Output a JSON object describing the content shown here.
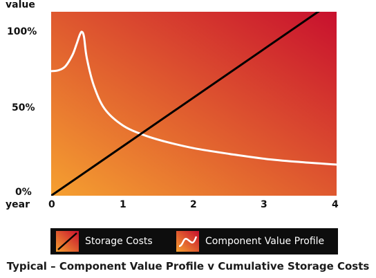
{
  "chart_data": {
    "type": "line",
    "title": "Typical – Component Value Profile v Cumulative Storage Costs",
    "xlabel": "year",
    "ylabel": "value",
    "xlim": [
      0,
      4
    ],
    "ylim": [
      0,
      100
    ],
    "x_ticks": [
      "0",
      "1",
      "2",
      "3",
      "4"
    ],
    "y_ticks": [
      "0%",
      "50%",
      "100%"
    ],
    "grid": false,
    "legend_position": "bottom",
    "background_gradient": [
      "#f5a030",
      "#c8102e"
    ],
    "series": [
      {
        "name": "Storage Costs",
        "color": "#000000",
        "x": [
          0,
          4
        ],
        "y": [
          0,
          120
        ]
      },
      {
        "name": "Component Value Profile",
        "color": "#ffffff",
        "x": [
          0,
          0.1,
          0.2,
          0.3,
          0.36,
          0.4,
          0.43,
          0.46,
          0.5,
          0.6,
          0.75,
          1.0,
          1.3,
          1.6,
          2.0,
          2.5,
          3.0,
          3.5,
          4.0
        ],
        "y": [
          76,
          76.5,
          79,
          86,
          93,
          98,
          100,
          97,
          84,
          67,
          53,
          43,
          37,
          33,
          29,
          25.5,
          22.5,
          20.5,
          19
        ]
      }
    ]
  },
  "legend": {
    "items": [
      {
        "label": "Storage Costs",
        "swatch": "storage-costs-swatch"
      },
      {
        "label": "Component Value Profile",
        "swatch": "value-profile-swatch"
      }
    ]
  }
}
